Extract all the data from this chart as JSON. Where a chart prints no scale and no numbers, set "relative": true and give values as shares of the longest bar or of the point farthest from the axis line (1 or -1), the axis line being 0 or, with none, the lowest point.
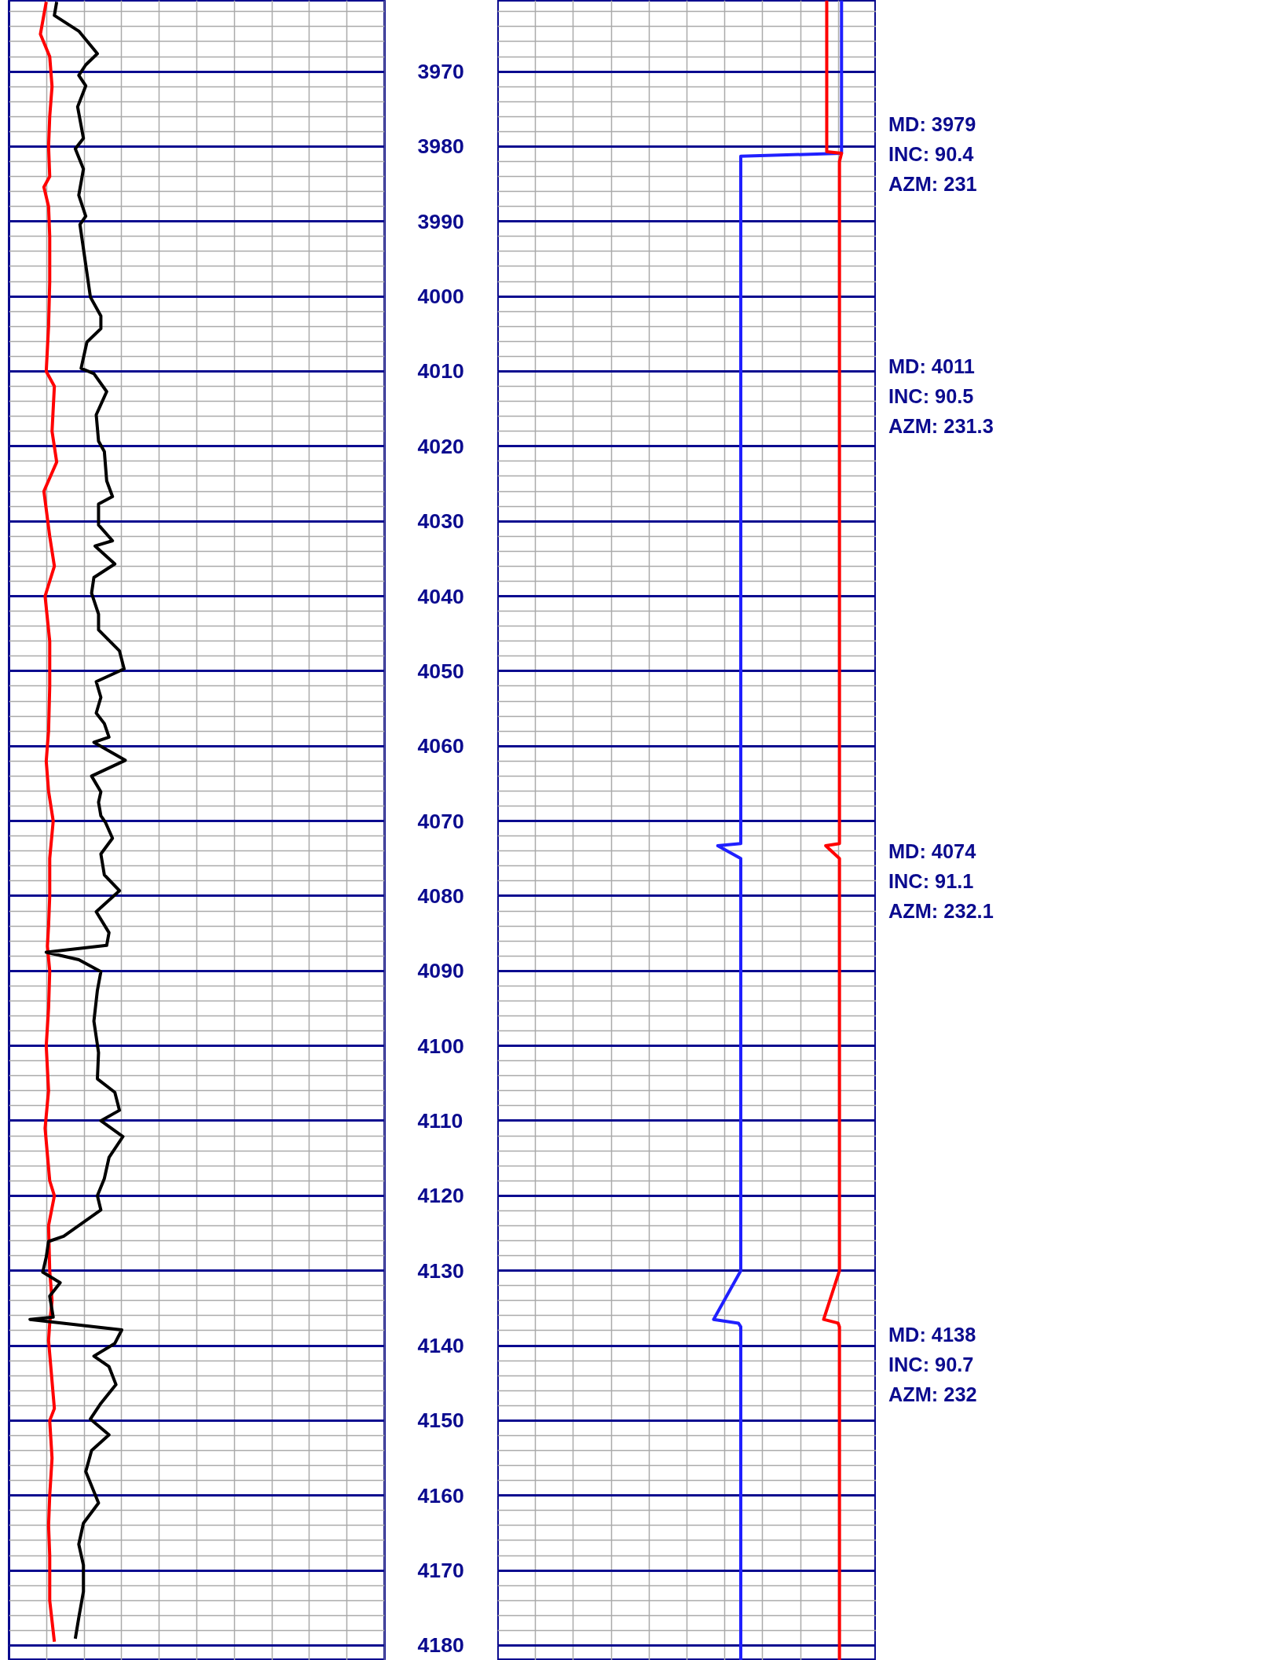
{
  "chart_data": [
    {
      "type": "line",
      "relative": true,
      "orientation": "horizontal",
      "grid": true,
      "tick_labels": "y",
      "ylim": [
        4182,
        3960.5
      ],
      "yticks": [
        3970,
        3980,
        3990,
        4000,
        4010,
        4020,
        4030,
        4040,
        4050,
        4060,
        4070,
        4080,
        4090,
        4100,
        4110,
        4120,
        4130,
        4140,
        4150,
        4160,
        4170,
        4180
      ],
      "series": [
        {
          "color": "#ff0000",
          "x": [
            3960.7,
            3965,
            3968,
            3972,
            3976,
            3980,
            3984,
            3985.4,
            3988,
            3992,
            3998,
            4004,
            4010,
            4012,
            4018,
            4022.1,
            4026,
            4032,
            4036,
            4040,
            4046,
            4052,
            4058,
            4062,
            4066,
            4070,
            4075,
            4080,
            4084,
            4086.7,
            4090,
            4095,
            4100,
            4106,
            4111,
            4118,
            4120,
            4124,
            4130,
            4134,
            4137,
            4139.3,
            4148.4,
            4150,
            4155,
            4160,
            4164,
            4168,
            4174,
            4179.5
          ],
          "values": [
            0.32,
            0.27,
            0.35,
            0.37,
            0.35,
            0.34,
            0.35,
            0.3,
            0.34,
            0.35,
            0.35,
            0.34,
            0.32,
            0.39,
            0.37,
            0.41,
            0.3,
            0.35,
            0.39,
            0.31,
            0.35,
            0.35,
            0.34,
            0.32,
            0.34,
            0.38,
            0.35,
            0.35,
            0.34,
            0.33,
            0.35,
            0.34,
            0.32,
            0.34,
            0.31,
            0.35,
            0.39,
            0.34,
            0.35,
            0.37,
            0.35,
            0.34,
            0.39,
            0.35,
            0.37,
            0.35,
            0.34,
            0.35,
            0.35,
            0.39
          ]
        },
        {
          "color": "#000000",
          "x": [
            3960.7,
            3962.5,
            3964.6,
            3967.6,
            3969.1,
            3970.5,
            3971.9,
            3974.7,
            3978.9,
            3980.3,
            3983.0,
            3986.5,
            3989.3,
            3990.4,
            4000.1,
            4002.6,
            4004.3,
            4006.1,
            4009.6,
            4010.3,
            4012.7,
            4015.8,
            4019.3,
            4020.7,
            4024.6,
            4026.7,
            4027.7,
            4030.5,
            4032.6,
            4033.3,
            4035.7,
            4037.5,
            4039.6,
            4042.4,
            4044.5,
            4047.3,
            4049.7,
            4051.4,
            4053.5,
            4055.6,
            4057.0,
            4058.8,
            4059.5,
            4061.9,
            4064.0,
            4066.1,
            4067.5,
            4069.3,
            4070.2,
            4072.3,
            4074.4,
            4077.2,
            4079.3,
            4082.1,
            4084.9,
            4086.6,
            4087.5,
            4088.5,
            4090.1,
            4092.6,
            4096.7,
            4100.9,
            4104.4,
            4106.2,
            4108.6,
            4110.0,
            4112.1,
            4114.9,
            4117.7,
            4120.0,
            4121.9,
            4125.4,
            4126.1,
            4128.2,
            4130.2,
            4131.6,
            4133.4,
            4136.2,
            4136.5,
            4137.9,
            4139.7,
            4141.4,
            4142.8,
            4145.2,
            4147.7,
            4149.8,
            4151.9,
            4154.0,
            4156.8,
            4161.0,
            4163.7,
            4166.5,
            4169.3,
            4172.8,
            4176.3,
            4179.1
          ],
          "values": [
            0.41,
            0.39,
            0.6,
            0.76,
            0.66,
            0.6,
            0.66,
            0.59,
            0.64,
            0.57,
            0.64,
            0.6,
            0.66,
            0.61,
            0.7,
            0.79,
            0.79,
            0.67,
            0.62,
            0.73,
            0.84,
            0.75,
            0.77,
            0.82,
            0.84,
            0.89,
            0.77,
            0.77,
            0.89,
            0.74,
            0.91,
            0.73,
            0.71,
            0.77,
            0.77,
            0.95,
            0.99,
            0.75,
            0.79,
            0.75,
            0.82,
            0.86,
            0.73,
            1.0,
            0.71,
            0.79,
            0.77,
            0.79,
            0.83,
            0.89,
            0.79,
            0.82,
            0.95,
            0.75,
            0.86,
            0.84,
            0.32,
            0.6,
            0.79,
            0.76,
            0.73,
            0.77,
            0.76,
            0.91,
            0.95,
            0.79,
            0.98,
            0.86,
            0.82,
            0.76,
            0.79,
            0.47,
            0.34,
            0.32,
            0.29,
            0.44,
            0.35,
            0.38,
            0.18,
            0.97,
            0.91,
            0.73,
            0.86,
            0.92,
            0.79,
            0.7,
            0.86,
            0.71,
            0.66,
            0.77,
            0.64,
            0.6,
            0.64,
            0.64,
            0.6,
            0.57
          ]
        }
      ]
    },
    {
      "type": "line",
      "relative": true,
      "orientation": "horizontal",
      "grid": true,
      "tick_labels": false,
      "ylim": [
        4182,
        3960.5
      ],
      "yticks": [
        3970,
        3980,
        3990,
        4000,
        4010,
        4020,
        4030,
        4040,
        4050,
        4060,
        4070,
        4080,
        4090,
        4100,
        4110,
        4120,
        4130,
        4140,
        4150,
        4160,
        4170,
        4180
      ],
      "series": [
        {
          "color": "#2020ff",
          "x": [
            3960.5,
            3980.9,
            3981.3,
            4073.0,
            4073.3,
            4075.0,
            4130.0,
            4136.5,
            4137.0,
            4137.5,
            4182
          ],
          "values": [
            1.0,
            1.0,
            0.707,
            0.707,
            0.64,
            0.707,
            0.707,
            0.628,
            0.7,
            0.707,
            0.707
          ]
        },
        {
          "color": "#ff0000",
          "x": [
            3960.5,
            3980.7,
            3980.9,
            3982.0,
            4073.0,
            4073.3,
            4075.0,
            4130.0,
            4136.5,
            4137.0,
            4137.5,
            4182
          ],
          "values": [
            0.957,
            0.957,
            1.0,
            0.994,
            0.994,
            0.954,
            0.994,
            0.994,
            0.948,
            0.99,
            0.994,
            0.994
          ]
        }
      ],
      "annotations": [
        "MD: 3979\nINC: 90.4\nAZM: 231",
        "MD: 4011\nINC: 90.5\nAZM: 231.3",
        "MD: 4074\nINC: 91.1\nAZM: 232.1",
        "MD: 4138\nINC: 90.7\nAZM: 232"
      ]
    }
  ]
}
